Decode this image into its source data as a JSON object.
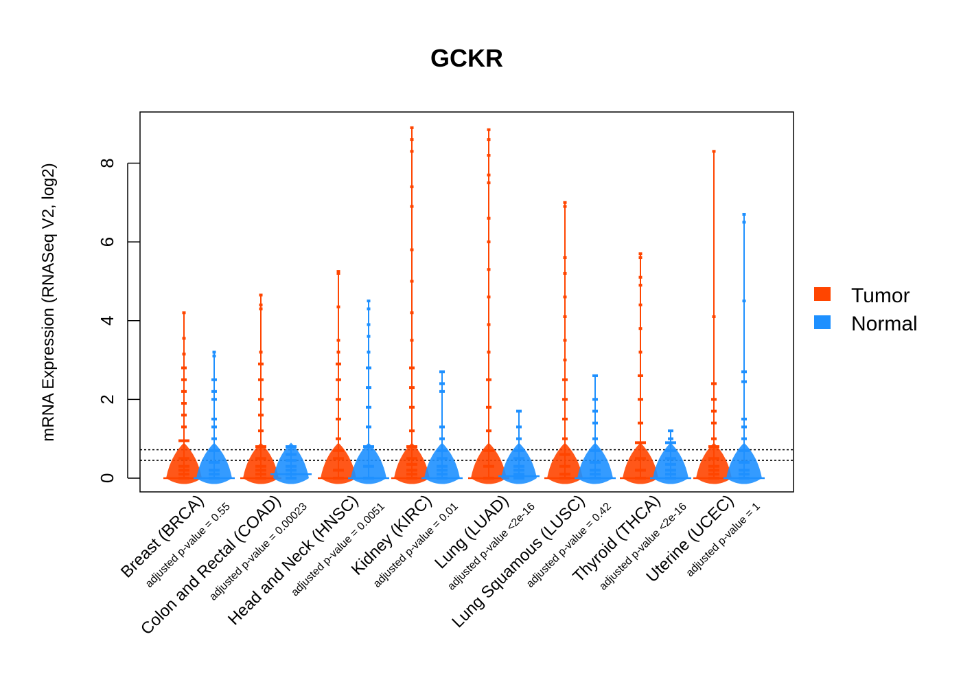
{
  "chart_data": {
    "type": "beeswarm",
    "title": "GCKR",
    "ylabel": "mRNA Expression (RNASeq V2, log2)",
    "ylim": [
      -0.35,
      9.3
    ],
    "yticks": [
      "0",
      "2",
      "4",
      "6",
      "8"
    ],
    "reference_lines": [
      0.45,
      0.72
    ],
    "grid": false,
    "legend_position": "right",
    "series": [
      {
        "name": "Tumor",
        "color": "#FF4500"
      },
      {
        "name": "Normal",
        "color": "#1E90FF"
      }
    ],
    "groups": [
      {
        "category": "Breast (BRCA)",
        "pvalue": "adjusted p-value = 0.55",
        "tumor": {
          "points": [
            0,
            0.1,
            0.2,
            0.3,
            0.5,
            0.95,
            1.3,
            1.6,
            1.9,
            2.2,
            2.5,
            2.8,
            3.15,
            3.55,
            4.2
          ],
          "median": 0
        },
        "normal": {
          "points": [
            0,
            0.1,
            0.2,
            0.4,
            0.7,
            1.0,
            1.3,
            1.5,
            2.0,
            2.2,
            2.5,
            3.1,
            3.2
          ],
          "median": 0
        }
      },
      {
        "category": "Colon and Rectal (COAD)",
        "pvalue": "adjusted p-value = 0.00023",
        "tumor": {
          "points": [
            0,
            0.1,
            0.2,
            0.3,
            0.5,
            0.8,
            1.2,
            1.6,
            2.0,
            2.5,
            2.9,
            3.2,
            4.3,
            4.4,
            4.65
          ],
          "median": 0
        },
        "normal": {
          "points": [
            0,
            0.1,
            0.2,
            0.3,
            0.45,
            0.6,
            0.8
          ],
          "median": 0.1
        }
      },
      {
        "category": "Head and Neck (HNSC)",
        "pvalue": "adjusted p-value = 0.0051",
        "tumor": {
          "points": [
            0,
            0.2,
            0.5,
            0.7,
            1.0,
            1.5,
            2.0,
            2.5,
            2.9,
            3.2,
            3.5,
            4.35,
            5.2,
            5.25
          ],
          "median": 0
        },
        "normal": {
          "points": [
            0,
            0.3,
            0.8,
            1.3,
            1.8,
            2.3,
            2.8,
            3.2,
            3.6,
            3.9,
            4.3,
            4.5
          ],
          "median": 0
        }
      },
      {
        "category": "Kidney (KIRC)",
        "pvalue": "adjusted p-value = 0.01",
        "tumor": {
          "points": [
            0,
            0.1,
            0.2,
            0.35,
            0.5,
            0.8,
            1.2,
            1.8,
            2.3,
            2.8,
            3.5,
            4.2,
            5.0,
            5.8,
            6.9,
            7.4,
            8.3,
            8.6,
            8.9
          ],
          "median": 0
        },
        "normal": {
          "points": [
            0,
            0.1,
            0.2,
            0.3,
            0.5,
            0.7,
            1.0,
            1.3,
            2.2,
            2.4,
            2.7
          ],
          "median": 0
        }
      },
      {
        "category": "Lung (LUAD)",
        "pvalue": "adjusted p-value <2e-16",
        "tumor": {
          "points": [
            0,
            0.3,
            0.7,
            1.2,
            1.8,
            2.5,
            3.2,
            3.9,
            4.6,
            5.3,
            6.0,
            6.6,
            7.5,
            7.7,
            8.2,
            8.6,
            8.85
          ],
          "median": 0
        },
        "normal": {
          "points": [
            0,
            0.1,
            0.2,
            0.3,
            0.5,
            0.7,
            1.0,
            1.3,
            1.7
          ],
          "median": 0.05
        }
      },
      {
        "category": "Lung Squamous (LUSC)",
        "pvalue": "adjusted p-value = 0.42",
        "tumor": {
          "points": [
            0,
            0.1,
            0.3,
            0.6,
            1.0,
            1.5,
            2.0,
            2.5,
            3.0,
            3.5,
            4.1,
            4.6,
            5.2,
            5.6,
            6.9,
            7.0
          ],
          "median": 0
        },
        "normal": {
          "points": [
            0,
            0.1,
            0.2,
            0.4,
            0.7,
            1.0,
            1.4,
            1.7,
            2.0,
            2.6
          ],
          "median": 0
        }
      },
      {
        "category": "Thyroid (THCA)",
        "pvalue": "adjusted p-value <2e-16",
        "tumor": {
          "points": [
            0,
            0.2,
            0.5,
            0.9,
            1.4,
            2.0,
            2.6,
            3.2,
            3.8,
            4.4,
            4.9,
            5.1,
            5.6,
            5.7
          ],
          "median": 0
        },
        "normal": {
          "points": [
            0,
            0.1,
            0.2,
            0.35,
            0.5,
            0.7,
            0.9,
            1.0,
            1.2
          ],
          "median": 0
        }
      },
      {
        "category": "Uterine (UCEC)",
        "pvalue": "adjusted p-value = 1",
        "tumor": {
          "points": [
            0,
            0.1,
            0.2,
            0.3,
            0.5,
            0.8,
            1.0,
            1.4,
            1.7,
            2.0,
            2.4,
            4.1,
            8.3
          ],
          "median": 0
        },
        "normal": {
          "points": [
            0,
            0.1,
            0.2,
            0.4,
            0.7,
            1.0,
            1.3,
            1.5,
            2.45,
            2.7,
            4.5,
            6.5,
            6.7
          ],
          "median": 0
        }
      }
    ]
  }
}
